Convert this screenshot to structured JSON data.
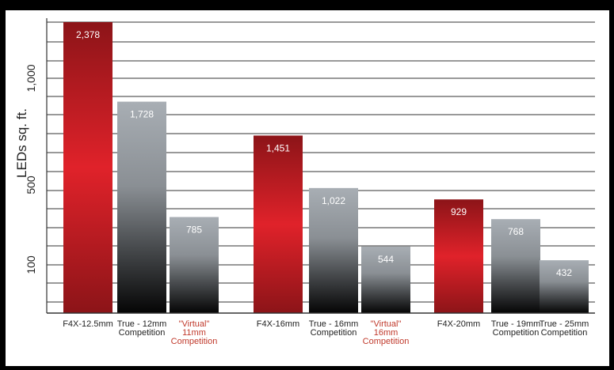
{
  "chart_data": {
    "type": "bar",
    "ylabel": "LEDs sq. ft.",
    "ylim": [
      0,
      2378
    ],
    "y_ticks": [
      {
        "value": 100,
        "label": "100"
      },
      {
        "value": 500,
        "label": "500"
      },
      {
        "value": 1000,
        "label": "1,000"
      }
    ],
    "grid": true,
    "bars": [
      {
        "group": 1,
        "lines": [
          "F4X-12.5mm"
        ],
        "value": 2378,
        "value_label": "2,378",
        "kind": "f4x"
      },
      {
        "group": 1,
        "lines": [
          "True - 12mm",
          "Competition"
        ],
        "value": 1728,
        "value_label": "1,728",
        "kind": "true"
      },
      {
        "group": 1,
        "lines": [
          "\"Virtual\"",
          "11mm",
          "Competition"
        ],
        "value": 785,
        "value_label": "785",
        "kind": "virtual"
      },
      {
        "group": 2,
        "lines": [
          "F4X-16mm"
        ],
        "value": 1451,
        "value_label": "1,451",
        "kind": "f4x"
      },
      {
        "group": 2,
        "lines": [
          "True - 16mm",
          "Competition"
        ],
        "value": 1022,
        "value_label": "1,022",
        "kind": "true"
      },
      {
        "group": 2,
        "lines": [
          "\"Virtual\"",
          "16mm",
          "Competition"
        ],
        "value": 544,
        "value_label": "544",
        "kind": "virtual"
      },
      {
        "group": 3,
        "lines": [
          "F4X-20mm"
        ],
        "value": 929,
        "value_label": "929",
        "kind": "f4x"
      },
      {
        "group": 3,
        "lines": [
          "True - 19mm",
          "Competition"
        ],
        "value": 768,
        "value_label": "768",
        "kind": "true"
      },
      {
        "group": 3,
        "lines": [
          "True - 25mm",
          "Competition"
        ],
        "value": 432,
        "value_label": "432",
        "kind": "true"
      }
    ],
    "colors": {
      "f4x_edge": "#8c1418",
      "f4x_center": "#e0222a",
      "gray_top": "#a8aeb4",
      "gray_mid": "#6e7276",
      "gray_bottom": "#050505",
      "virtual_label": "#c0392b",
      "label": "#222222",
      "grid": "#333333"
    }
  }
}
